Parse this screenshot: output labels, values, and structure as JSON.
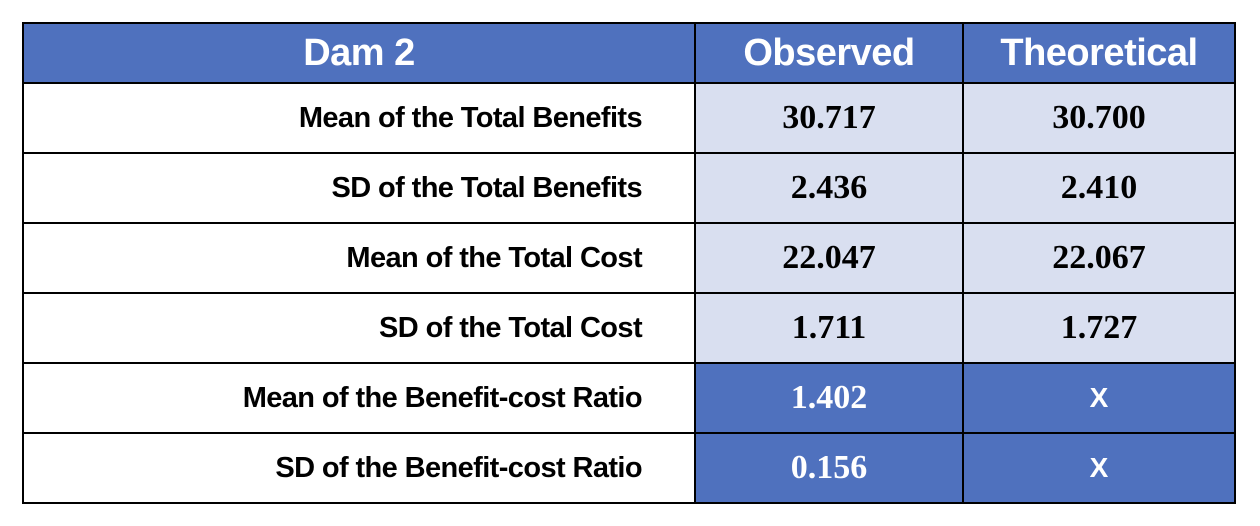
{
  "table": {
    "headers": [
      "Dam 2",
      "Observed",
      "Theoretical"
    ],
    "rows": [
      {
        "label": "Mean of the Total Benefits",
        "observed": "30.717",
        "theoretical": "30.700"
      },
      {
        "label": "SD of the Total Benefits",
        "observed": "2.436",
        "theoretical": "2.410"
      },
      {
        "label": "Mean of the Total Cost",
        "observed": "22.047",
        "theoretical": "22.067"
      },
      {
        "label": "SD of the Total Cost",
        "observed": "1.711",
        "theoretical": "1.727"
      },
      {
        "label": "Mean of the Benefit-cost Ratio",
        "observed": "1.402",
        "theoretical": "X"
      },
      {
        "label": "SD of the Benefit-cost Ratio",
        "observed": "0.156",
        "theoretical": "X"
      }
    ]
  },
  "colors": {
    "header_bg": "#4f71be",
    "value_bg": "#d9dff0",
    "highlight_bg": "#4f71be"
  }
}
